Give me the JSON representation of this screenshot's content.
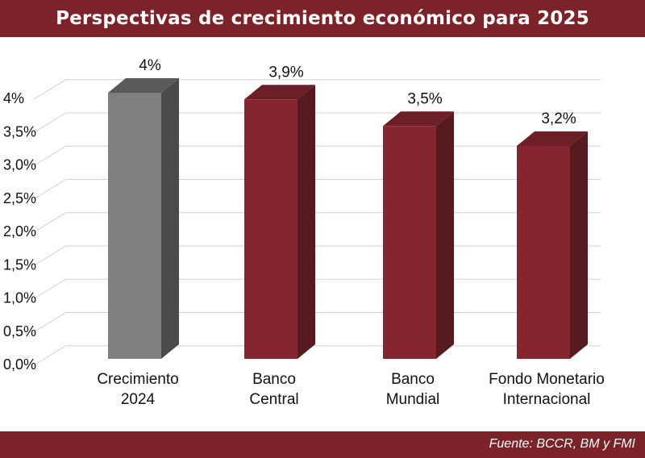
{
  "title": "Perspectivas de crecimiento económico para 2025",
  "source": "Fuente: BCCR, BM y FMI",
  "chart_data": {
    "type": "bar",
    "title": "Perspectivas de crecimiento económico para 2025",
    "categories": [
      [
        "Crecimiento",
        "2024"
      ],
      [
        "Banco",
        "Central"
      ],
      [
        "Banco",
        "Mundial"
      ],
      [
        "Fondo Monetario",
        "Internacional"
      ]
    ],
    "values": [
      4.0,
      3.9,
      3.5,
      3.2
    ],
    "data_labels": [
      "4%",
      "3,9%",
      "3,5%",
      "3,2%"
    ],
    "y_ticks": [
      0,
      0.5,
      1.0,
      1.5,
      2.0,
      2.5,
      3.0,
      3.5,
      4.0
    ],
    "y_tick_labels": [
      "0,0%",
      "0,5%",
      "1,0%",
      "1,5%",
      "2,0%",
      "2,5%",
      "3,0%",
      "3,5%",
      "4%"
    ],
    "ylim": [
      0,
      4
    ],
    "grid": true,
    "style": "3d-column",
    "colors": {
      "highlight_front": "#7f7f7f",
      "highlight_side": "#4a4a4a",
      "highlight_top": "#5a5a5a",
      "bar_front": "#862530",
      "bar_side": "#571a20",
      "bar_top": "#6c1f27",
      "grid": "#d0d0d0",
      "brand": "#7b2329"
    }
  }
}
